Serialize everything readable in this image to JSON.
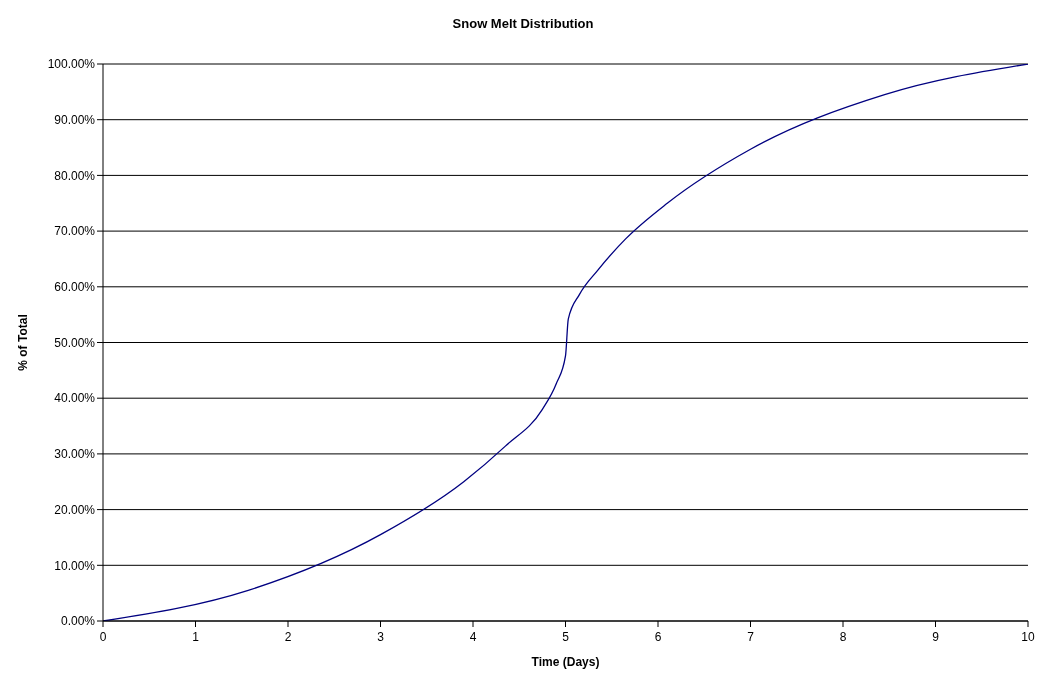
{
  "chart_data": {
    "type": "line",
    "title": "Snow Melt Distribution",
    "xlabel": "Time (Days)",
    "ylabel": "% of Total",
    "x": [
      0,
      1.57,
      3,
      3.9,
      4.35,
      4.75,
      4.9,
      5,
      5.03,
      5.15,
      5.35,
      5.65,
      6.1,
      7,
      8.45,
      10
    ],
    "series": [
      {
        "color": "#000080",
        "values": [
          0,
          5.5,
          15.5,
          25,
          31.4,
          38,
          42.6,
          47.6,
          54.2,
          58.6,
          63,
          68.6,
          75,
          84.7,
          94.5,
          100
        ]
      }
    ],
    "xlim": [
      0,
      10
    ],
    "xticks": [
      0,
      1,
      2,
      3,
      4,
      5,
      6,
      7,
      8,
      9,
      10
    ],
    "ylim": [
      0,
      100
    ],
    "yticks": [
      {
        "value": 0,
        "label": "0.00%"
      },
      {
        "value": 10,
        "label": "10.00%"
      },
      {
        "value": 20,
        "label": "20.00%"
      },
      {
        "value": 30,
        "label": "30.00%"
      },
      {
        "value": 40,
        "label": "40.00%"
      },
      {
        "value": 50,
        "label": "50.00%"
      },
      {
        "value": 60,
        "label": "60.00%"
      },
      {
        "value": 70,
        "label": "70.00%"
      },
      {
        "value": 80,
        "label": "80.00%"
      },
      {
        "value": 90,
        "label": "90.00%"
      },
      {
        "value": 100,
        "label": "100.00%"
      }
    ],
    "grid": "y",
    "marker": "none",
    "line_style": "solid",
    "legend": false
  }
}
